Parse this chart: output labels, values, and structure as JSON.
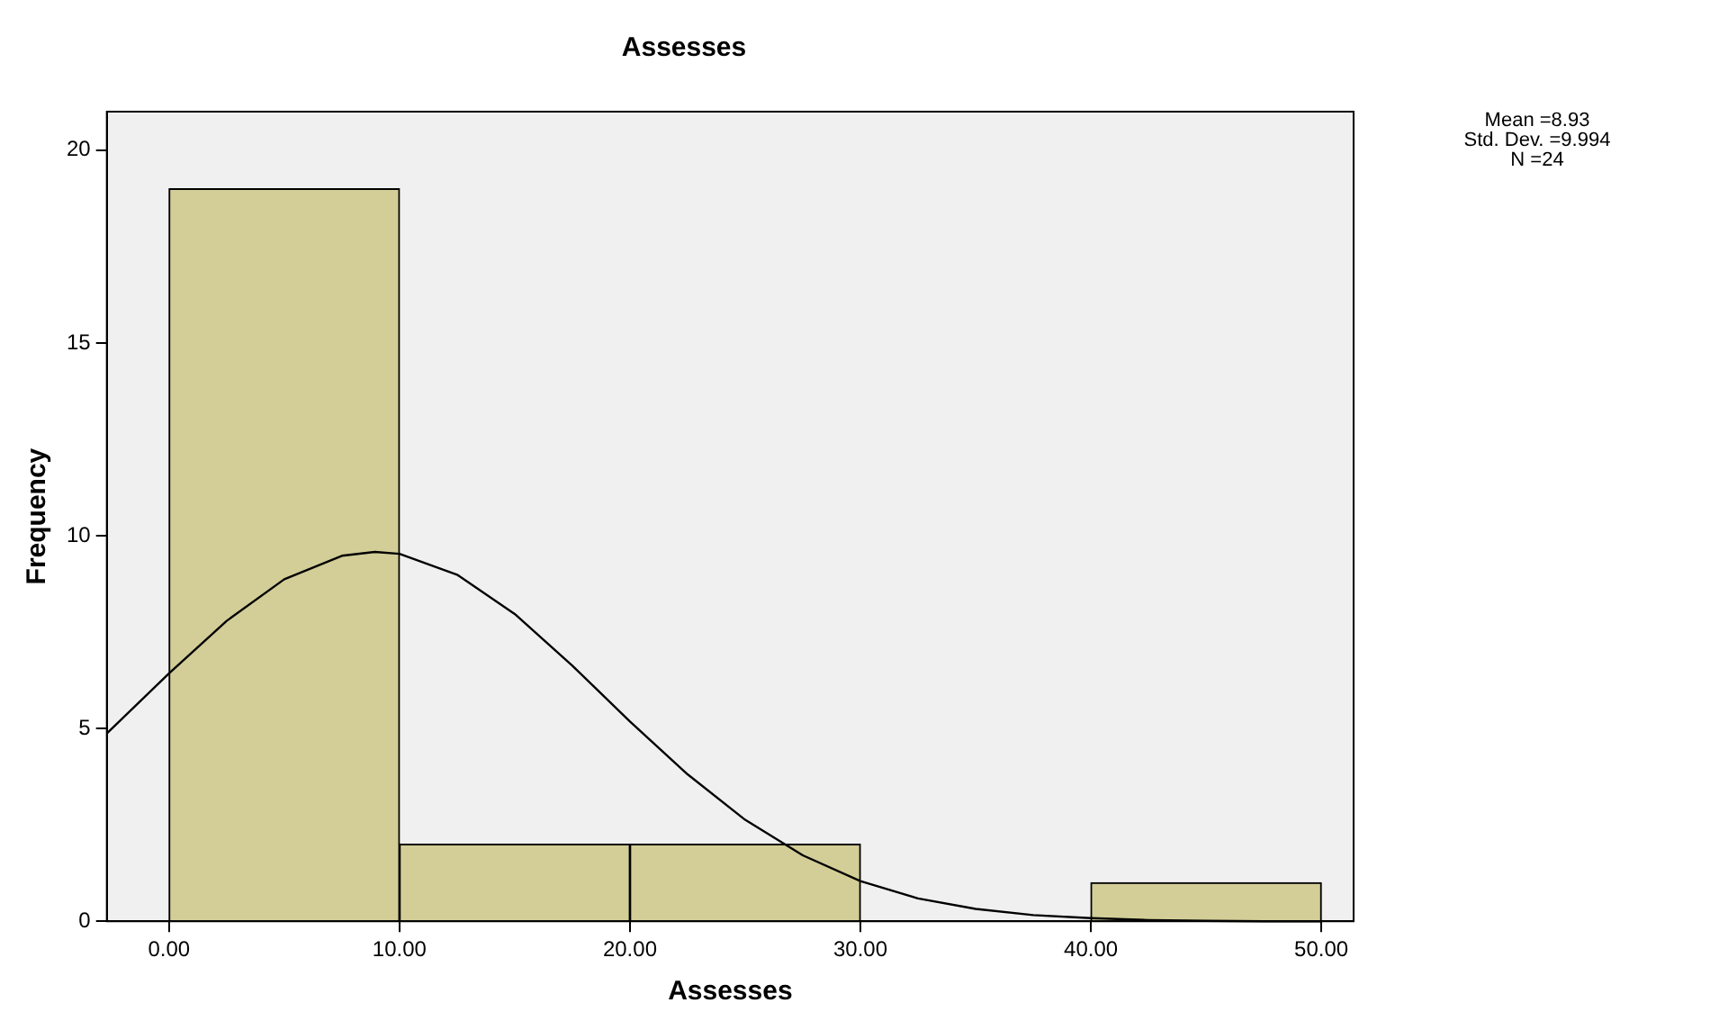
{
  "chart_data": {
    "type": "histogram",
    "title": "Assesses",
    "xlabel": "Assesses",
    "ylabel": "Frequency",
    "bins": [
      0,
      10,
      20,
      30,
      40,
      50
    ],
    "values": [
      19,
      2,
      2,
      0,
      1
    ],
    "color": "#d3ce97",
    "xlim": [
      -2.7,
      51.4
    ],
    "xticks": [
      {
        "value": 0,
        "label": "0.00"
      },
      {
        "value": 10,
        "label": "10.00"
      },
      {
        "value": 20,
        "label": "20.00"
      },
      {
        "value": 30,
        "label": "30.00"
      },
      {
        "value": 40,
        "label": "40.00"
      },
      {
        "value": 50,
        "label": "50.00"
      }
    ],
    "ylim": [
      0,
      21
    ],
    "yticks": [
      0,
      5,
      10,
      15,
      20
    ],
    "grid": false,
    "legend": false,
    "series": [
      {
        "type": "line",
        "color": "#000000",
        "x": [
          -2.7,
          0,
          2.5,
          5,
          7.5,
          8.93,
          10,
          12.5,
          15,
          17.5,
          20,
          22.5,
          25,
          27.5,
          30,
          32.5,
          35,
          37.5,
          40,
          42.5,
          45,
          47.5,
          50
        ],
        "values": [
          4.87,
          6.43,
          7.79,
          8.87,
          9.48,
          9.58,
          9.53,
          8.99,
          7.97,
          6.63,
          5.18,
          3.81,
          2.63,
          1.71,
          1.04,
          0.59,
          0.32,
          0.16,
          0.08,
          0.03,
          0.01,
          0,
          0
        ]
      }
    ],
    "annotations": [
      "Mean =8.93",
      "Std. Dev. =9.994",
      "N =24"
    ]
  }
}
